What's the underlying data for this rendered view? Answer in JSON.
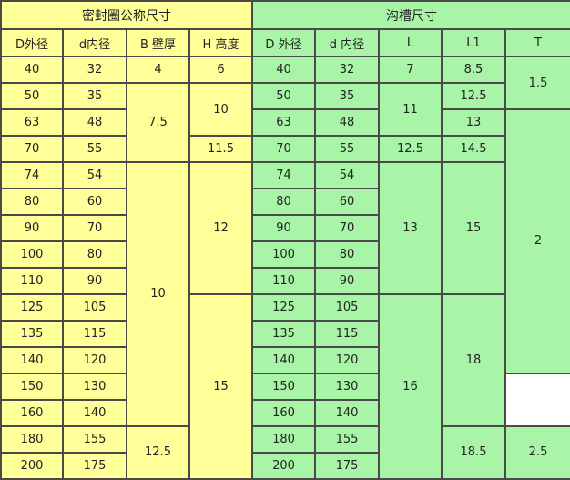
{
  "header": {
    "seal_group": "密封圈公称尺寸",
    "groove_group": "沟槽尺寸"
  },
  "columns": [
    "D外径",
    "d内径",
    "B 壁厚",
    "H 高度",
    "D 外径",
    "d 内径",
    "L",
    "L1",
    "T"
  ],
  "colors": {
    "seal": "#ffff99",
    "groove": "#a8f5a8",
    "border": "#4a4a4a"
  },
  "rows": [
    [
      {
        "v": "40"
      },
      {
        "v": "32"
      },
      {
        "v": "4"
      },
      {
        "v": "6"
      },
      {
        "v": "40"
      },
      {
        "v": "32"
      },
      {
        "v": "7"
      },
      {
        "v": "8.5"
      },
      {
        "v": "1.5",
        "span": 2
      }
    ],
    [
      {
        "v": "50"
      },
      {
        "v": "35"
      },
      {
        "v": "7.5",
        "span": 3
      },
      {
        "v": "10",
        "span": 2
      },
      {
        "v": "50"
      },
      {
        "v": "35"
      },
      {
        "v": "11",
        "span": 2
      },
      {
        "v": "12.5"
      }
    ],
    [
      {
        "v": "63"
      },
      {
        "v": "48"
      },
      {
        "v": "63"
      },
      {
        "v": "48"
      },
      {
        "v": "13"
      },
      {
        "v": "2",
        "span": 10
      }
    ],
    [
      {
        "v": "70"
      },
      {
        "v": "55"
      },
      {
        "v": "11.5"
      },
      {
        "v": "70"
      },
      {
        "v": "55"
      },
      {
        "v": "12.5"
      },
      {
        "v": "14.5"
      }
    ],
    [
      {
        "v": "74"
      },
      {
        "v": "54"
      },
      {
        "v": "10",
        "span": 10
      },
      {
        "v": "12",
        "span": 5
      },
      {
        "v": "74"
      },
      {
        "v": "54"
      },
      {
        "v": "13",
        "span": 5
      },
      {
        "v": "15",
        "span": 5
      }
    ],
    [
      {
        "v": "80"
      },
      {
        "v": "60"
      },
      {
        "v": "80"
      },
      {
        "v": "60"
      }
    ],
    [
      {
        "v": "90"
      },
      {
        "v": "70"
      },
      {
        "v": "90"
      },
      {
        "v": "70"
      }
    ],
    [
      {
        "v": "100"
      },
      {
        "v": "80"
      },
      {
        "v": "100"
      },
      {
        "v": "80"
      }
    ],
    [
      {
        "v": "110"
      },
      {
        "v": "90"
      },
      {
        "v": "110"
      },
      {
        "v": "90"
      }
    ],
    [
      {
        "v": "125"
      },
      {
        "v": "105"
      },
      {
        "v": "15",
        "span": 7
      },
      {
        "v": "125"
      },
      {
        "v": "105"
      },
      {
        "v": "16",
        "span": 7
      },
      {
        "v": "18",
        "span": 5
      }
    ],
    [
      {
        "v": "135"
      },
      {
        "v": "115"
      },
      {
        "v": "135"
      },
      {
        "v": "115"
      }
    ],
    [
      {
        "v": "140"
      },
      {
        "v": "120"
      },
      {
        "v": "140"
      },
      {
        "v": "120"
      }
    ],
    [
      {
        "v": "150"
      },
      {
        "v": "130"
      },
      {
        "v": "150"
      },
      {
        "v": "130"
      }
    ],
    [
      {
        "v": "160"
      },
      {
        "v": "140"
      },
      {
        "v": "160"
      },
      {
        "v": "140"
      }
    ],
    [
      {
        "v": "180"
      },
      {
        "v": "155"
      },
      {
        "v": "12.5",
        "span": 2
      },
      {
        "v": "180"
      },
      {
        "v": "155"
      },
      {
        "v": "18.5",
        "span": 2
      },
      {
        "v": "2.5",
        "span": 2
      }
    ],
    [
      {
        "v": "200"
      },
      {
        "v": "175"
      },
      {
        "v": "200"
      },
      {
        "v": "175"
      }
    ]
  ]
}
